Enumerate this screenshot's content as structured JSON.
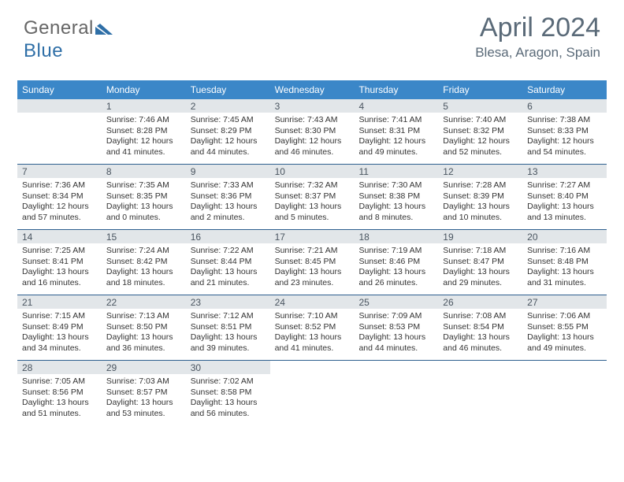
{
  "logo": {
    "text_a": "General",
    "text_b": "Blue"
  },
  "title": {
    "month": "April 2024",
    "location": "Blesa, Aragon, Spain"
  },
  "colors": {
    "header_bg": "#3b87c8",
    "header_text": "#ffffff",
    "daynum_bg": "#e2e6e9",
    "daynum_text": "#4a5560",
    "week_border": "#2d5f8f",
    "body_text": "#333333",
    "title_text": "#5a6a78"
  },
  "headers": [
    "Sunday",
    "Monday",
    "Tuesday",
    "Wednesday",
    "Thursday",
    "Friday",
    "Saturday"
  ],
  "weeks": [
    [
      null,
      {
        "day": "1",
        "sunrise": "Sunrise: 7:46 AM",
        "sunset": "Sunset: 8:28 PM",
        "daylight": "Daylight: 12 hours and 41 minutes."
      },
      {
        "day": "2",
        "sunrise": "Sunrise: 7:45 AM",
        "sunset": "Sunset: 8:29 PM",
        "daylight": "Daylight: 12 hours and 44 minutes."
      },
      {
        "day": "3",
        "sunrise": "Sunrise: 7:43 AM",
        "sunset": "Sunset: 8:30 PM",
        "daylight": "Daylight: 12 hours and 46 minutes."
      },
      {
        "day": "4",
        "sunrise": "Sunrise: 7:41 AM",
        "sunset": "Sunset: 8:31 PM",
        "daylight": "Daylight: 12 hours and 49 minutes."
      },
      {
        "day": "5",
        "sunrise": "Sunrise: 7:40 AM",
        "sunset": "Sunset: 8:32 PM",
        "daylight": "Daylight: 12 hours and 52 minutes."
      },
      {
        "day": "6",
        "sunrise": "Sunrise: 7:38 AM",
        "sunset": "Sunset: 8:33 PM",
        "daylight": "Daylight: 12 hours and 54 minutes."
      }
    ],
    [
      {
        "day": "7",
        "sunrise": "Sunrise: 7:36 AM",
        "sunset": "Sunset: 8:34 PM",
        "daylight": "Daylight: 12 hours and 57 minutes."
      },
      {
        "day": "8",
        "sunrise": "Sunrise: 7:35 AM",
        "sunset": "Sunset: 8:35 PM",
        "daylight": "Daylight: 13 hours and 0 minutes."
      },
      {
        "day": "9",
        "sunrise": "Sunrise: 7:33 AM",
        "sunset": "Sunset: 8:36 PM",
        "daylight": "Daylight: 13 hours and 2 minutes."
      },
      {
        "day": "10",
        "sunrise": "Sunrise: 7:32 AM",
        "sunset": "Sunset: 8:37 PM",
        "daylight": "Daylight: 13 hours and 5 minutes."
      },
      {
        "day": "11",
        "sunrise": "Sunrise: 7:30 AM",
        "sunset": "Sunset: 8:38 PM",
        "daylight": "Daylight: 13 hours and 8 minutes."
      },
      {
        "day": "12",
        "sunrise": "Sunrise: 7:28 AM",
        "sunset": "Sunset: 8:39 PM",
        "daylight": "Daylight: 13 hours and 10 minutes."
      },
      {
        "day": "13",
        "sunrise": "Sunrise: 7:27 AM",
        "sunset": "Sunset: 8:40 PM",
        "daylight": "Daylight: 13 hours and 13 minutes."
      }
    ],
    [
      {
        "day": "14",
        "sunrise": "Sunrise: 7:25 AM",
        "sunset": "Sunset: 8:41 PM",
        "daylight": "Daylight: 13 hours and 16 minutes."
      },
      {
        "day": "15",
        "sunrise": "Sunrise: 7:24 AM",
        "sunset": "Sunset: 8:42 PM",
        "daylight": "Daylight: 13 hours and 18 minutes."
      },
      {
        "day": "16",
        "sunrise": "Sunrise: 7:22 AM",
        "sunset": "Sunset: 8:44 PM",
        "daylight": "Daylight: 13 hours and 21 minutes."
      },
      {
        "day": "17",
        "sunrise": "Sunrise: 7:21 AM",
        "sunset": "Sunset: 8:45 PM",
        "daylight": "Daylight: 13 hours and 23 minutes."
      },
      {
        "day": "18",
        "sunrise": "Sunrise: 7:19 AM",
        "sunset": "Sunset: 8:46 PM",
        "daylight": "Daylight: 13 hours and 26 minutes."
      },
      {
        "day": "19",
        "sunrise": "Sunrise: 7:18 AM",
        "sunset": "Sunset: 8:47 PM",
        "daylight": "Daylight: 13 hours and 29 minutes."
      },
      {
        "day": "20",
        "sunrise": "Sunrise: 7:16 AM",
        "sunset": "Sunset: 8:48 PM",
        "daylight": "Daylight: 13 hours and 31 minutes."
      }
    ],
    [
      {
        "day": "21",
        "sunrise": "Sunrise: 7:15 AM",
        "sunset": "Sunset: 8:49 PM",
        "daylight": "Daylight: 13 hours and 34 minutes."
      },
      {
        "day": "22",
        "sunrise": "Sunrise: 7:13 AM",
        "sunset": "Sunset: 8:50 PM",
        "daylight": "Daylight: 13 hours and 36 minutes."
      },
      {
        "day": "23",
        "sunrise": "Sunrise: 7:12 AM",
        "sunset": "Sunset: 8:51 PM",
        "daylight": "Daylight: 13 hours and 39 minutes."
      },
      {
        "day": "24",
        "sunrise": "Sunrise: 7:10 AM",
        "sunset": "Sunset: 8:52 PM",
        "daylight": "Daylight: 13 hours and 41 minutes."
      },
      {
        "day": "25",
        "sunrise": "Sunrise: 7:09 AM",
        "sunset": "Sunset: 8:53 PM",
        "daylight": "Daylight: 13 hours and 44 minutes."
      },
      {
        "day": "26",
        "sunrise": "Sunrise: 7:08 AM",
        "sunset": "Sunset: 8:54 PM",
        "daylight": "Daylight: 13 hours and 46 minutes."
      },
      {
        "day": "27",
        "sunrise": "Sunrise: 7:06 AM",
        "sunset": "Sunset: 8:55 PM",
        "daylight": "Daylight: 13 hours and 49 minutes."
      }
    ],
    [
      {
        "day": "28",
        "sunrise": "Sunrise: 7:05 AM",
        "sunset": "Sunset: 8:56 PM",
        "daylight": "Daylight: 13 hours and 51 minutes."
      },
      {
        "day": "29",
        "sunrise": "Sunrise: 7:03 AM",
        "sunset": "Sunset: 8:57 PM",
        "daylight": "Daylight: 13 hours and 53 minutes."
      },
      {
        "day": "30",
        "sunrise": "Sunrise: 7:02 AM",
        "sunset": "Sunset: 8:58 PM",
        "daylight": "Daylight: 13 hours and 56 minutes."
      },
      null,
      null,
      null,
      null
    ]
  ]
}
